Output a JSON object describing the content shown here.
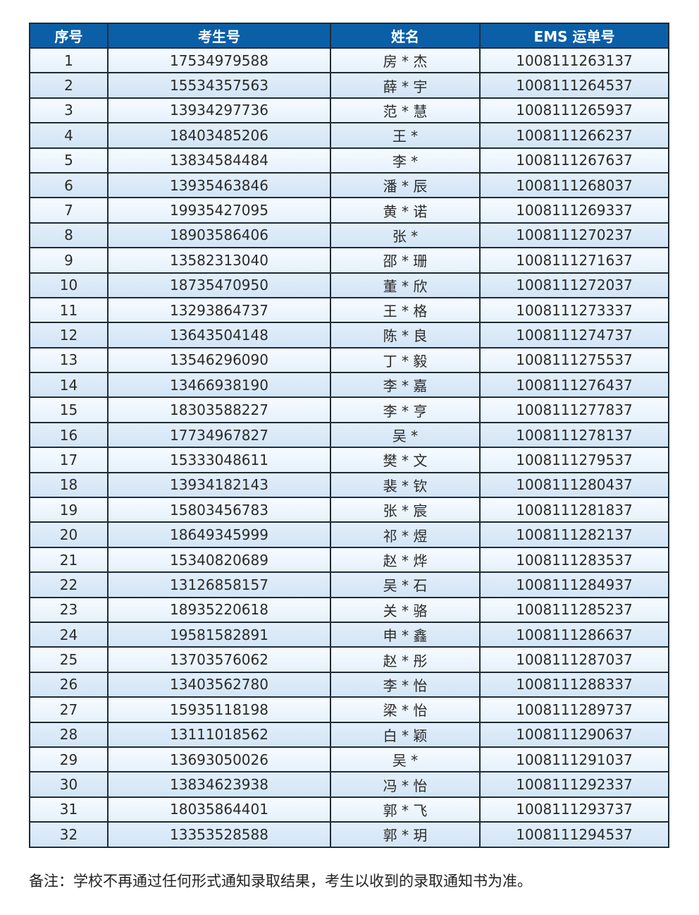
{
  "table": {
    "headers": [
      "序号",
      "考生号",
      "姓名",
      "EMS 运单号"
    ],
    "rows": [
      [
        "1",
        "17534979588",
        "房 * 杰",
        "1008111263137"
      ],
      [
        "2",
        "15534357563",
        "薛 * 宇",
        "1008111264537"
      ],
      [
        "3",
        "13934297736",
        "范 * 慧",
        "1008111265937"
      ],
      [
        "4",
        "18403485206",
        "王 *",
        "1008111266237"
      ],
      [
        "5",
        "13834584484",
        "李 *",
        "1008111267637"
      ],
      [
        "6",
        "13935463846",
        "潘 * 辰",
        "1008111268037"
      ],
      [
        "7",
        "19935427095",
        "黄 * 诺",
        "1008111269337"
      ],
      [
        "8",
        "18903586406",
        "张 *",
        "1008111270237"
      ],
      [
        "9",
        "13582313040",
        "邵 * 珊",
        "1008111271637"
      ],
      [
        "10",
        "18735470950",
        "董 * 欣",
        "1008111272037"
      ],
      [
        "11",
        "13293864737",
        "王 * 格",
        "1008111273337"
      ],
      [
        "12",
        "13643504148",
        "陈 * 良",
        "1008111274737"
      ],
      [
        "13",
        "13546296090",
        "丁 * 毅",
        "1008111275537"
      ],
      [
        "14",
        "13466938190",
        "李 * 嘉",
        "1008111276437"
      ],
      [
        "15",
        "18303588227",
        "李 * 亨",
        "1008111277837"
      ],
      [
        "16",
        "17734967827",
        "吴 *",
        "1008111278137"
      ],
      [
        "17",
        "15333048611",
        "樊 * 文",
        "1008111279537"
      ],
      [
        "18",
        "13934182143",
        "裴 * 钦",
        "1008111280437"
      ],
      [
        "19",
        "15803456783",
        "张 * 宸",
        "1008111281837"
      ],
      [
        "20",
        "18649345999",
        "祁 * 煜",
        "1008111282137"
      ],
      [
        "21",
        "15340820689",
        "赵 * 烨",
        "1008111283537"
      ],
      [
        "22",
        "13126858157",
        "吴 * 石",
        "1008111284937"
      ],
      [
        "23",
        "18935220618",
        "关 * 骆",
        "1008111285237"
      ],
      [
        "24",
        "19581582891",
        "申 * 鑫",
        "1008111286637"
      ],
      [
        "25",
        "13703576062",
        "赵 * 彤",
        "1008111287037"
      ],
      [
        "26",
        "13403562780",
        "李 * 怡",
        "1008111288337"
      ],
      [
        "27",
        "15935118198",
        "梁 * 怡",
        "1008111289737"
      ],
      [
        "28",
        "13111018562",
        "白 * 颖",
        "1008111290637"
      ],
      [
        "29",
        "13693050026",
        "吴 *",
        "1008111291037"
      ],
      [
        "30",
        "13834623938",
        "冯 * 怡",
        "1008111292337"
      ],
      [
        "31",
        "18035864401",
        "郭 * 飞",
        "1008111293737"
      ],
      [
        "32",
        "13353528588",
        "郭 * 玥",
        "1008111294537"
      ]
    ]
  },
  "note": "备注：学校不再通过任何形式通知录取结果，考生以收到的录取通知书为准。",
  "colors": {
    "header_bg": "#0b5fa7",
    "row_light": "#eef6fd",
    "row_dark": "#d6e8f8"
  }
}
